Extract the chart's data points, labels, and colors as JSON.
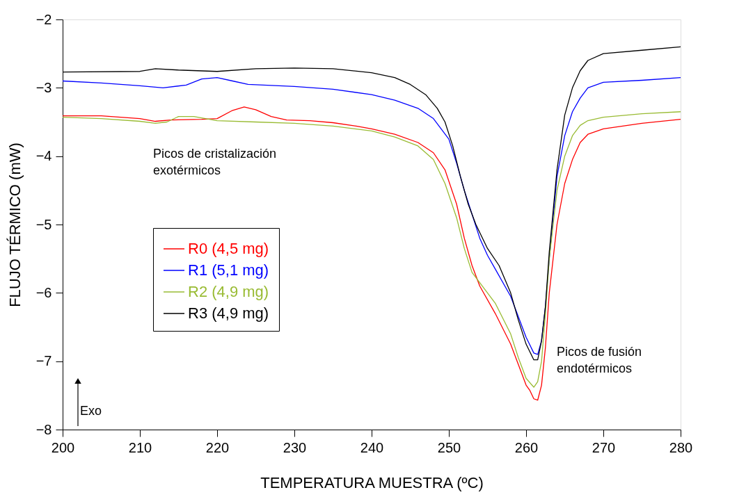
{
  "chart_data": {
    "type": "line",
    "xlabel": "TEMPERATURA MUESTRA (ºC)",
    "ylabel": "FLUJO TÉRMICO (mW)",
    "xlim": [
      200,
      280
    ],
    "xticks": [
      200,
      210,
      220,
      230,
      240,
      250,
      260,
      270,
      280
    ],
    "ylim": [
      -8,
      -2
    ],
    "yticks": [
      -8,
      -7,
      -6,
      -5,
      -4,
      -3,
      -2
    ],
    "grid": false,
    "legend": "left",
    "marker": "none",
    "line_style": "solid",
    "annotations": [
      "Picos de cristalización\nexotérmicos",
      "Picos de fusión\nendotérmicos",
      "Exo"
    ],
    "series": [
      {
        "name": "R0 (4,5 mg)",
        "color": "#ff0000",
        "x": [
          200,
          205,
          210,
          212,
          214,
          218,
          220,
          222,
          223.5,
          225,
          227,
          229,
          232,
          235,
          238,
          240,
          243,
          246,
          248,
          249.5,
          251,
          252,
          253,
          254,
          256,
          258,
          259,
          260,
          260.5,
          261,
          261.5,
          262,
          262.5,
          263,
          264,
          265,
          266,
          267,
          268,
          270,
          275,
          280
        ],
        "values": [
          -3.41,
          -3.41,
          -3.45,
          -3.49,
          -3.47,
          -3.46,
          -3.45,
          -3.33,
          -3.28,
          -3.32,
          -3.42,
          -3.47,
          -3.48,
          -3.51,
          -3.56,
          -3.6,
          -3.68,
          -3.8,
          -3.95,
          -4.2,
          -4.7,
          -5.2,
          -5.6,
          -5.9,
          -6.3,
          -6.75,
          -7.05,
          -7.35,
          -7.43,
          -7.55,
          -7.57,
          -7.35,
          -6.8,
          -6.0,
          -5.0,
          -4.4,
          -4.05,
          -3.8,
          -3.68,
          -3.6,
          -3.52,
          -3.46
        ]
      },
      {
        "name": "R1 (5,1 mg)",
        "color": "#0000ff",
        "x": [
          200,
          205,
          210,
          213,
          216,
          218,
          220,
          222,
          224,
          230,
          235,
          240,
          243,
          246,
          248,
          250,
          251,
          252,
          253,
          254,
          255,
          256,
          258,
          259,
          260,
          261,
          261.5,
          262,
          262.5,
          263,
          264,
          265,
          266,
          267,
          268,
          270,
          275,
          280
        ],
        "values": [
          -2.9,
          -2.93,
          -2.97,
          -3.0,
          -2.96,
          -2.87,
          -2.85,
          -2.9,
          -2.95,
          -2.98,
          -3.02,
          -3.1,
          -3.18,
          -3.3,
          -3.45,
          -3.75,
          -4.1,
          -4.5,
          -4.85,
          -5.2,
          -5.45,
          -5.65,
          -6.05,
          -6.35,
          -6.65,
          -6.88,
          -6.9,
          -6.7,
          -6.2,
          -5.5,
          -4.3,
          -3.7,
          -3.35,
          -3.15,
          -3.0,
          -2.92,
          -2.89,
          -2.85
        ]
      },
      {
        "name": "R2 (4,9 mg)",
        "color": "#99bb33",
        "x": [
          200,
          205,
          210,
          212,
          213.5,
          215,
          217,
          220,
          225,
          230,
          235,
          240,
          243,
          246,
          248,
          249.5,
          251,
          252,
          253,
          254,
          256,
          258,
          259,
          260,
          261,
          261.5,
          262,
          262.5,
          263,
          264,
          265,
          266,
          267,
          268,
          270,
          275,
          280
        ],
        "values": [
          -3.43,
          -3.45,
          -3.49,
          -3.52,
          -3.5,
          -3.42,
          -3.42,
          -3.48,
          -3.5,
          -3.52,
          -3.56,
          -3.63,
          -3.72,
          -3.85,
          -4.05,
          -4.4,
          -4.9,
          -5.35,
          -5.7,
          -5.85,
          -6.15,
          -6.6,
          -6.95,
          -7.25,
          -7.38,
          -7.3,
          -7.0,
          -6.3,
          -5.5,
          -4.5,
          -4.0,
          -3.7,
          -3.55,
          -3.48,
          -3.43,
          -3.38,
          -3.35
        ]
      },
      {
        "name": "R3 (4,9 mg)",
        "color": "#000000",
        "x": [
          200,
          210,
          212,
          215,
          220,
          225,
          230,
          235,
          240,
          243,
          245,
          247,
          248.5,
          249.5,
          250.5,
          251.5,
          252.5,
          253.5,
          255,
          256.5,
          258,
          259,
          260,
          261,
          261.5,
          262,
          262.5,
          263,
          264,
          265,
          266,
          267,
          268,
          270,
          275,
          280
        ],
        "values": [
          -2.77,
          -2.76,
          -2.72,
          -2.74,
          -2.76,
          -2.72,
          -2.71,
          -2.72,
          -2.78,
          -2.85,
          -2.95,
          -3.1,
          -3.3,
          -3.5,
          -3.85,
          -4.3,
          -4.7,
          -5.0,
          -5.35,
          -5.6,
          -6.0,
          -6.4,
          -6.75,
          -6.98,
          -6.98,
          -6.7,
          -6.2,
          -5.4,
          -4.2,
          -3.4,
          -3.0,
          -2.75,
          -2.6,
          -2.5,
          -2.45,
          -2.4
        ]
      }
    ]
  }
}
